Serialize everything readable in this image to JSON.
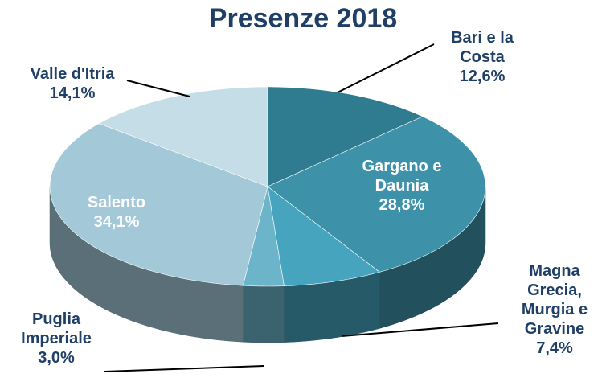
{
  "chart_data": {
    "type": "pie3d",
    "title": "Presenze 2018",
    "categories": [
      "Bari e la Costa",
      "Gargano e Daunia",
      "Magna Grecia, Murgia e Gravine",
      "Puglia Imperiale",
      "Salento",
      "Valle d'Itria"
    ],
    "values": [
      12.6,
      28.8,
      7.4,
      3.0,
      34.1,
      14.1
    ],
    "value_labels": [
      "12,6%",
      "28,8%",
      "7,4%",
      "3,0%",
      "34,1%",
      "14,1%"
    ],
    "colors": [
      "#2f7b90",
      "#3d91a9",
      "#46a4be",
      "#6cb4c9",
      "#a3c9d9",
      "#c5dde7"
    ]
  }
}
